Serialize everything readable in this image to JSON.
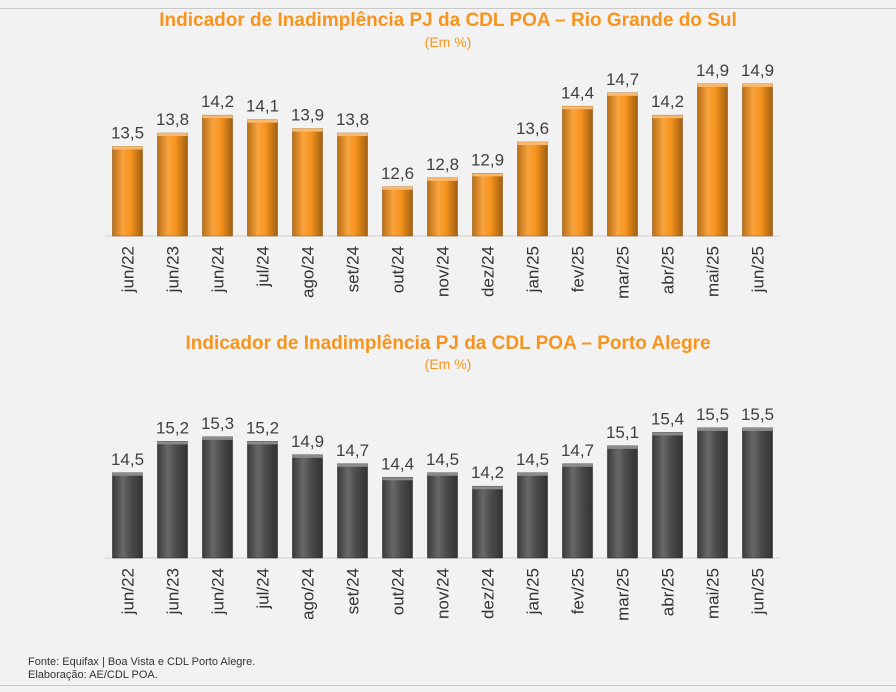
{
  "colors": {
    "title": "#f7941d",
    "orange_bar": "#f7941d",
    "gray_bar": "#4d4d4d"
  },
  "chart_data": [
    {
      "type": "bar",
      "title": "Indicador de Inadimplência PJ da CDL POA – Rio Grande do Sul",
      "subtitle": "(Em %)",
      "categories": [
        "jun/22",
        "jun/23",
        "jun/24",
        "jul/24",
        "ago/24",
        "set/24",
        "out/24",
        "nov/24",
        "dez/24",
        "jan/25",
        "fev/25",
        "mar/25",
        "abr/25",
        "mai/25",
        "jun/25"
      ],
      "values": [
        13.5,
        13.8,
        14.2,
        14.1,
        13.9,
        13.8,
        12.6,
        12.8,
        12.9,
        13.6,
        14.4,
        14.7,
        14.2,
        14.9,
        14.9
      ],
      "value_labels": [
        "13,5",
        "13,8",
        "14,2",
        "14,1",
        "13,9",
        "13,8",
        "12,6",
        "12,8",
        "12,9",
        "13,6",
        "14,4",
        "14,7",
        "14,2",
        "14,9",
        "14,9"
      ],
      "color": "#f7941d",
      "ylim": [
        11.5,
        15.3
      ],
      "grid": false,
      "legend": "none"
    },
    {
      "type": "bar",
      "title": "Indicador de Inadimplência PJ da CDL POA – Porto Alegre",
      "subtitle": "(Em %)",
      "categories": [
        "jun/22",
        "jun/23",
        "jun/24",
        "jul/24",
        "ago/24",
        "set/24",
        "out/24",
        "nov/24",
        "dez/24",
        "jan/25",
        "fev/25",
        "mar/25",
        "abr/25",
        "mai/25",
        "jun/25"
      ],
      "values": [
        14.5,
        15.2,
        15.3,
        15.2,
        14.9,
        14.7,
        14.4,
        14.5,
        14.2,
        14.5,
        14.7,
        15.1,
        15.4,
        15.5,
        15.5
      ],
      "value_labels": [
        "14,5",
        "15,2",
        "15,3",
        "15,2",
        "14,9",
        "14,7",
        "14,4",
        "14,5",
        "14,2",
        "14,5",
        "14,7",
        "15,1",
        "15,4",
        "15,5",
        "15,5"
      ],
      "color": "#4d4d4d",
      "ylim": [
        12.6,
        15.9
      ],
      "grid": false,
      "legend": "none"
    }
  ],
  "footer": {
    "source": "Fonte: Equifax | Boa Vista e CDL Porto Alegre.",
    "credit": "Elaboração: AE/CDL POA."
  }
}
